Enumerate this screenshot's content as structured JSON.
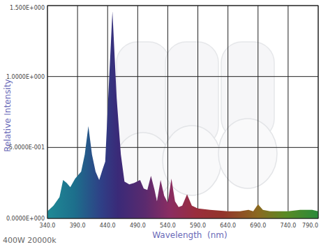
{
  "chart_data": {
    "type": "area",
    "subtitle": "400W 20000k",
    "x_label": "Wavelength  (nm)",
    "y_label": "Relative Intensity",
    "x": [
      340,
      350,
      360,
      366,
      372,
      378,
      386,
      396,
      402,
      408,
      414,
      420,
      426,
      432,
      436,
      441,
      448,
      455,
      462,
      468,
      476,
      484,
      494,
      500,
      506,
      512,
      518,
      522,
      528,
      534,
      540,
      546,
      552,
      558,
      564,
      572,
      580,
      590,
      610,
      640,
      660,
      674,
      682,
      690,
      698,
      710,
      740,
      760,
      780,
      790
    ],
    "values": [
      0.05,
      0.09,
      0.15,
      0.27,
      0.25,
      0.22,
      0.28,
      0.33,
      0.45,
      0.65,
      0.45,
      0.33,
      0.27,
      0.35,
      0.4,
      0.85,
      1.46,
      0.85,
      0.45,
      0.26,
      0.24,
      0.25,
      0.27,
      0.21,
      0.2,
      0.3,
      0.2,
      0.12,
      0.27,
      0.16,
      0.11,
      0.28,
      0.12,
      0.08,
      0.09,
      0.17,
      0.09,
      0.07,
      0.06,
      0.05,
      0.05,
      0.06,
      0.05,
      0.1,
      0.06,
      0.05,
      0.05,
      0.06,
      0.06,
      0.05
    ],
    "xlim": [
      340,
      790
    ],
    "ylim": [
      0,
      1.5
    ],
    "xticks": [
      {
        "value": 340,
        "label": "340.0"
      },
      {
        "value": 390,
        "label": "390.0"
      },
      {
        "value": 440,
        "label": "440.0"
      },
      {
        "value": 490,
        "label": "490.0"
      },
      {
        "value": 540,
        "label": "540.0"
      },
      {
        "value": 590,
        "label": "590.0"
      },
      {
        "value": 640,
        "label": "640.0"
      },
      {
        "value": 690,
        "label": "690.0"
      },
      {
        "value": 740,
        "label": "740.0"
      },
      {
        "value": 790,
        "label": "790.0"
      }
    ],
    "yticks": [
      {
        "value": 0,
        "label": "0.0000E+000"
      },
      {
        "value": 0.5,
        "label": "5.0000E-001"
      },
      {
        "value": 1,
        "label": "1.0000E+000"
      },
      {
        "value": 1.5,
        "label": "1.500E+000"
      }
    ],
    "grid": true
  }
}
